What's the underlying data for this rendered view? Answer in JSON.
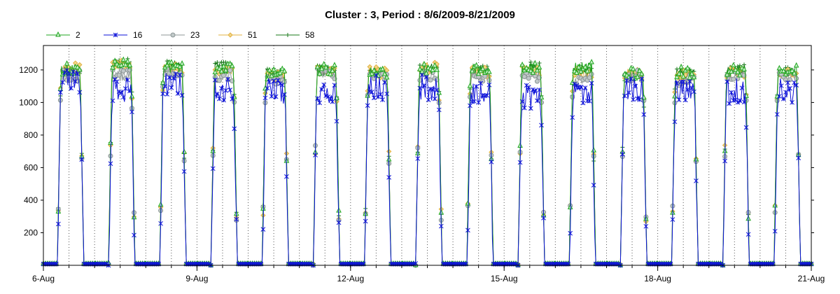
{
  "chart_data": {
    "type": "line",
    "title": "Cluster : 3, Period : 8/6/2009-8/21/2009",
    "xlabel": "",
    "ylabel": "",
    "x_range_days": [
      0,
      15
    ],
    "x_ticks": [
      "6-Aug",
      "9-Aug",
      "12-Aug",
      "15-Aug",
      "18-Aug",
      "21-Aug"
    ],
    "x_tick_days": [
      0,
      3,
      6,
      9,
      12,
      15
    ],
    "ylim": [
      0,
      1350
    ],
    "y_ticks": [
      200,
      400,
      600,
      800,
      1000,
      1200
    ],
    "grid": "vertical dotted lines at noon and midnight",
    "legend_position": "top-left",
    "series": [
      {
        "name": "2",
        "color": "#1fa51f",
        "marker": "triangle",
        "daily_peak": [
          1240,
          1270,
          1250,
          1240,
          1210,
          1240,
          1220,
          1240,
          1240,
          1250,
          1250,
          1210,
          1220,
          1230,
          1230
        ]
      },
      {
        "name": "16",
        "color": "#0b10d8",
        "marker": "star",
        "daily_peak": [
          1200,
          1150,
          1200,
          1150,
          1150,
          1150,
          1170,
          1170,
          1150,
          1120,
          1120,
          1150,
          1140,
          1150,
          1150
        ]
      },
      {
        "name": "23",
        "color": "#8c9696",
        "marker": "circle",
        "daily_peak": [
          1200,
          1200,
          1230,
          1200,
          1180,
          1210,
          1200,
          1200,
          1200,
          1200,
          1180,
          1200,
          1170,
          1200,
          1200
        ]
      },
      {
        "name": "51",
        "color": "#e0b040",
        "marker": "diamond",
        "daily_peak": [
          1250,
          1260,
          1240,
          1230,
          1200,
          1230,
          1220,
          1250,
          1220,
          1230,
          1210,
          1210,
          1200,
          1220,
          1210
        ]
      },
      {
        "name": "58",
        "color": "#1a7a1a",
        "marker": "plus",
        "daily_peak": [
          1230,
          1270,
          1260,
          1250,
          1210,
          1230,
          1230,
          1240,
          1230,
          1250,
          1230,
          1200,
          1210,
          1240,
          1220
        ]
      }
    ],
    "day_window": {
      "sunrise_frac": 0.27,
      "sunset_frac": 0.79
    }
  }
}
